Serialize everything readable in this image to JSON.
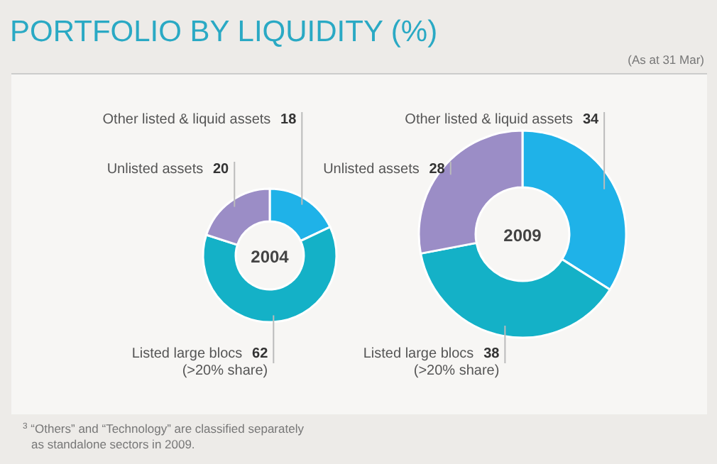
{
  "chart_data": [
    {
      "type": "donut",
      "title": "PORTFOLIO BY LIQUIDITY (%)",
      "annotations": [
        "2004",
        "$^{3}$ “Others” and “Technology” are classified separately as standalone sectors in 2009."
      ],
      "categories": [
        "Other listed & liquid assets",
        "Listed large blocs (>20% share)",
        "Unlisted assets"
      ],
      "values": [
        18,
        62,
        20
      ],
      "colors": [
        "#1fb2e8",
        "#14b1c7",
        "#9b8dc6"
      ],
      "data_labels": true
    },
    {
      "type": "donut",
      "subtitle": "(As at 31 Mar)",
      "annotations": [
        "2009"
      ],
      "categories": [
        "Other listed & liquid assets",
        "Listed large blocs (>20% share)",
        "Unlisted assets"
      ],
      "values": [
        34,
        38,
        28
      ],
      "colors": [
        "#1fb2e8",
        "#14b1c7",
        "#9b8dc6"
      ],
      "data_labels": true
    }
  ]
}
